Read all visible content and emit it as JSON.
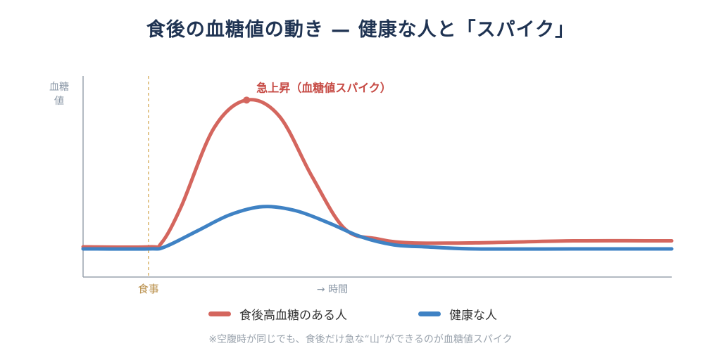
{
  "title": "食後の血糖値の動き — 健康な人と「スパイク」",
  "footnote": "※空腹時が同じでも、食後だけ急な“山”ができるのが血糖値スパイク",
  "colors": {
    "spike": "#d4665e",
    "healthy": "#3f82c4",
    "axis": "#9aa3ad",
    "meal": "#d9b46a",
    "annotation": "#c64a44",
    "axis_text": "#8a97a6"
  },
  "chart_data": {
    "type": "line",
    "ylabel": "血糖値",
    "xlabel": "→ 時間",
    "meal_label": "食事",
    "meal_x": 0,
    "x_range": [
      -2,
      16
    ],
    "y_range": [
      0,
      100
    ],
    "annotation": {
      "text": "急上昇（血糖値スパイク）",
      "x": 3.0,
      "y": 88
    },
    "series": [
      {
        "name": "食後高血糖のある人",
        "key": "spike",
        "x": [
          -2,
          0,
          0.4,
          1.0,
          2.0,
          3.0,
          4.0,
          5.0,
          6.0,
          7.0,
          8.0,
          10.0,
          13.0,
          16.0
        ],
        "y": [
          15,
          15,
          17,
          35,
          74,
          88,
          80,
          50,
          24,
          19,
          17,
          17,
          18,
          18
        ]
      },
      {
        "name": "健康な人",
        "key": "healthy",
        "x": [
          -2,
          0,
          0.5,
          1.5,
          2.5,
          3.5,
          4.5,
          5.5,
          6.5,
          7.5,
          8.5,
          10.0,
          13.0,
          16.0
        ],
        "y": [
          14,
          14,
          15,
          23,
          31,
          35,
          33,
          27,
          20,
          16,
          15,
          14,
          14,
          14
        ]
      }
    ]
  }
}
